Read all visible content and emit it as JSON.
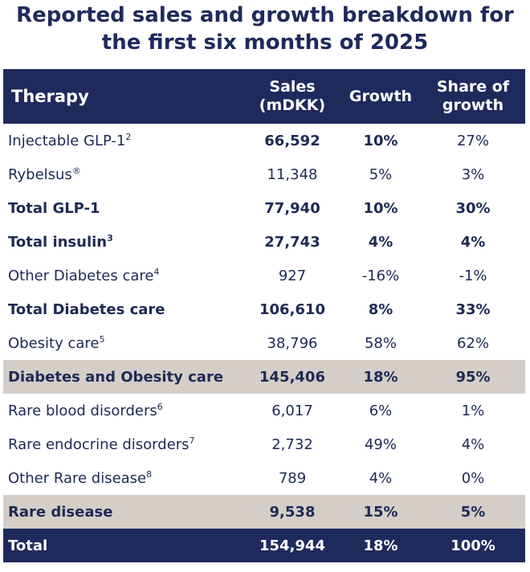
{
  "title": {
    "line1": "Reported sales and growth breakdown for",
    "line2": "the first six months of 2025"
  },
  "header": {
    "therapy": "Therapy",
    "sales_line1": "Sales",
    "sales_line2": "(mDKK)",
    "growth": "Growth",
    "share_line1": "Share of",
    "share_line2": "growth"
  },
  "rows": [
    {
      "therapy": "Injectable GLP-1",
      "sup": "2",
      "sales": "66,592",
      "growth": "10%",
      "share": "27%"
    },
    {
      "therapy": "Rybelsus",
      "sup": "®",
      "sales": "11,348",
      "growth": "5%",
      "share": "3%"
    },
    {
      "therapy": "Total GLP-1",
      "sup": "",
      "sales": "77,940",
      "growth": "10%",
      "share": "30%"
    },
    {
      "therapy": "Total insulin",
      "sup": "3",
      "sales": "27,743",
      "growth": "4%",
      "share": "4%"
    },
    {
      "therapy": "Other Diabetes care",
      "sup": "4",
      "sales": "927",
      "growth": "-16%",
      "share": "-1%"
    },
    {
      "therapy": "Total Diabetes care",
      "sup": "",
      "sales": "106,610",
      "growth": "8%",
      "share": "33%"
    },
    {
      "therapy": "Obesity care",
      "sup": "5",
      "sales": "38,796",
      "growth": "58%",
      "share": "62%"
    },
    {
      "therapy": "Diabetes and Obesity care",
      "sup": "",
      "sales": "145,406",
      "growth": "18%",
      "share": "95%"
    },
    {
      "therapy": "Rare blood disorders",
      "sup": "6",
      "sales": "6,017",
      "growth": "6%",
      "share": "1%"
    },
    {
      "therapy": "Rare endocrine disorders",
      "sup": "7",
      "sales": "2,732",
      "growth": "49%",
      "share": "4%"
    },
    {
      "therapy": "Other Rare disease",
      "sup": "8",
      "sales": "789",
      "growth": "4%",
      "share": "0%"
    },
    {
      "therapy": "Rare disease",
      "sup": "",
      "sales": "9,538",
      "growth": "15%",
      "share": "5%"
    },
    {
      "therapy": "Total",
      "sup": "",
      "sales": "154,944",
      "growth": "18%",
      "share": "100%"
    }
  ]
}
